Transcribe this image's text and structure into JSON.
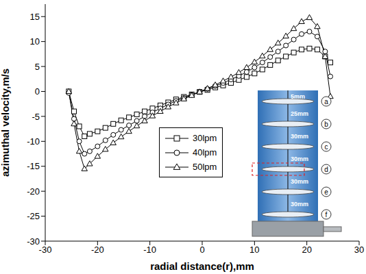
{
  "chart_data": {
    "type": "line",
    "xlabel": "radial distance(r),mm",
    "ylabel": "azimuthal velocity,m/s",
    "xlim": [
      -30,
      30
    ],
    "xticks": [
      -30,
      -20,
      -10,
      0,
      10,
      20,
      30
    ],
    "ylim": [
      -30,
      17.5
    ],
    "yticks": [
      -30,
      -25,
      -20,
      -15,
      -10,
      -5,
      0,
      5,
      10,
      15
    ],
    "grid": false,
    "legend": "center",
    "x": [
      -25.5,
      -24.5,
      -23.5,
      -22.5,
      -21.5,
      -20,
      -18.5,
      -17,
      -15.5,
      -14,
      -12.5,
      -11,
      -9.5,
      -8,
      -6.5,
      -5,
      -3.5,
      -2,
      -0.5,
      1,
      2.5,
      4,
      5.5,
      7,
      8.5,
      10,
      11.5,
      13,
      14.5,
      16,
      17.5,
      19,
      20.5,
      22,
      23.5,
      24.5
    ],
    "series": [
      {
        "name": "30lpm",
        "color": "#000000",
        "marker": "square",
        "line_style": "solid",
        "values": [
          0,
          -4,
          -7,
          -9,
          -8.5,
          -8,
          -7.3,
          -6.5,
          -5.8,
          -5.2,
          -4.6,
          -4,
          -3.4,
          -2.8,
          -2.2,
          -1.6,
          -1.1,
          -0.6,
          -0.1,
          0.3,
          0.8,
          1.2,
          1.7,
          2.3,
          2.9,
          3.6,
          4.4,
          5.3,
          6.2,
          7,
          7.8,
          8.4,
          8.6,
          8.4,
          7,
          5.8
        ]
      },
      {
        "name": "40lpm",
        "color": "#000000",
        "marker": "circle",
        "line_style": "solid",
        "values": [
          -0.3,
          -5.5,
          -10,
          -12.5,
          -12,
          -11,
          -9.8,
          -8.7,
          -7.7,
          -6.8,
          -5.9,
          -5,
          -4.2,
          -3.4,
          -2.6,
          -1.9,
          -1.3,
          -0.7,
          -0.1,
          0.5,
          1.1,
          1.7,
          2.4,
          3.1,
          3.9,
          4.8,
          5.8,
          6.9,
          8,
          9.2,
          10.4,
          11.5,
          12,
          11,
          8,
          3
        ]
      },
      {
        "name": "50lpm",
        "color": "#000000",
        "marker": "triangle",
        "line_style": "solid",
        "values": [
          0,
          -6.5,
          -12,
          -15.5,
          -14.5,
          -13,
          -11.6,
          -10.3,
          -9.1,
          -8,
          -6.9,
          -5.9,
          -4.9,
          -4,
          -3.1,
          -2.3,
          -1.5,
          -0.8,
          -0.1,
          0.6,
          1.3,
          2.1,
          2.9,
          3.8,
          4.8,
          5.9,
          7.1,
          8.4,
          9.7,
          11.1,
          12.6,
          14,
          14.8,
          13,
          7,
          -1
        ]
      }
    ],
    "inset": {
      "planes": [
        "a",
        "b",
        "c",
        "d",
        "e",
        "f"
      ],
      "spacings": [
        "5mm",
        "25mm",
        "30mm",
        "30mm",
        "30mm",
        "30mm"
      ],
      "highlight": "d"
    }
  }
}
